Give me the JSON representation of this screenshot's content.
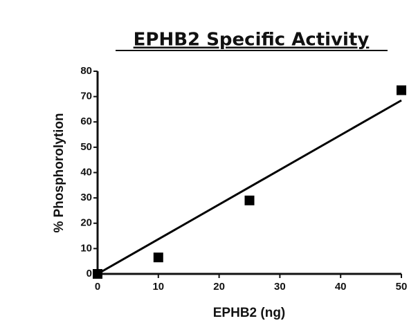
{
  "chart_data": {
    "type": "scatter",
    "title": "EPHB2 Specific Activity",
    "x_label": "EPHB2 (ng)",
    "y_label": "% Phosphorolytion",
    "x": [
      0,
      10,
      25,
      50
    ],
    "values": [
      0,
      6.5,
      29,
      72.5
    ],
    "color": "#000000",
    "fit_line": {
      "x": [
        0,
        50
      ],
      "values": [
        0,
        68.5
      ]
    },
    "xlim": [
      0,
      50
    ],
    "xticks": [
      0,
      10,
      20,
      30,
      40,
      50
    ],
    "ylim": [
      0,
      80
    ],
    "yticks": [
      0,
      10,
      20,
      30,
      40,
      50,
      60,
      70,
      80
    ]
  }
}
